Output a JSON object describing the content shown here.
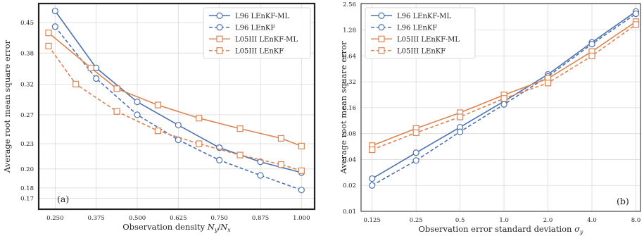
{
  "colors": {
    "l96": "#4c72b0",
    "l05": "#dd8452",
    "grid": "#d9d9d9",
    "frame": "#222222"
  },
  "chart_data": [
    {
      "type": "line",
      "panel_label": "(a)",
      "xlabel": "Observation density N_y/N_x",
      "xlabel_main": "Observation density ",
      "xlabel_math": "N",
      "xlabel_sub1": "y",
      "xlabel_slash": "/",
      "xlabel_math2": "N",
      "xlabel_sub2": "x",
      "ylabel": "Average root mean square error",
      "xlim": [
        0.2,
        1.04
      ],
      "ylim": [
        0.16,
        0.5
      ],
      "yscale": "log",
      "grid": true,
      "legend_position": "top-right",
      "x_ticks": [
        0.25,
        0.375,
        0.5,
        0.625,
        0.75,
        0.875,
        1.0
      ],
      "x_tick_labels": [
        "0.250",
        "0.375",
        "0.500",
        "0.625",
        "0.750",
        "0.875",
        "1.000"
      ],
      "y_ticks": [
        0.17,
        0.18,
        0.2,
        0.23,
        0.27,
        0.32,
        0.38,
        0.45
      ],
      "y_tick_labels": [
        "0.17",
        "0.18",
        "0.20",
        "0.23",
        "0.27",
        "0.32",
        "0.38",
        "0.45"
      ],
      "series": [
        {
          "name": "L96 LEnKF-ML",
          "color_key": "l96",
          "dashed": false,
          "marker": "circle",
          "x": [
            0.25,
            0.375,
            0.5,
            0.625,
            0.75,
            0.875,
            1.0
          ],
          "y": [
            0.48,
            0.35,
            0.29,
            0.255,
            0.225,
            0.208,
            0.196
          ]
        },
        {
          "name": "L96 LEnKF",
          "color_key": "l96",
          "dashed": true,
          "marker": "circle",
          "x": [
            0.25,
            0.375,
            0.5,
            0.625,
            0.75,
            0.875,
            1.0
          ],
          "y": [
            0.44,
            0.33,
            0.27,
            0.235,
            0.21,
            0.193,
            0.178
          ]
        },
        {
          "name": "L05III LEnKF-ML",
          "color_key": "l05",
          "dashed": false,
          "marker": "square",
          "x": [
            0.23,
            0.359,
            0.438,
            0.563,
            0.688,
            0.813,
            0.938,
            1.0
          ],
          "y": [
            0.425,
            0.35,
            0.312,
            0.285,
            0.265,
            0.25,
            0.237,
            0.227
          ]
        },
        {
          "name": "L05III LEnKF",
          "color_key": "l05",
          "dashed": true,
          "marker": "square",
          "x": [
            0.23,
            0.313,
            0.438,
            0.563,
            0.688,
            0.813,
            0.938,
            1.0
          ],
          "y": [
            0.395,
            0.32,
            0.275,
            0.247,
            0.23,
            0.216,
            0.205,
            0.198
          ]
        }
      ]
    },
    {
      "type": "line",
      "panel_label": "(b)",
      "xlabel": "Observation error standard deviation σ_y",
      "xlabel_main": "Observation error standard deviation ",
      "xlabel_math": "σ",
      "xlabel_sub1": "y",
      "ylabel": "Average root mean square error",
      "xscale": "log2",
      "yscale": "log",
      "xlim": [
        0.105,
        8.6
      ],
      "ylim": [
        0.01,
        2.6
      ],
      "grid": true,
      "legend_position": "top-left",
      "x_ticks": [
        0.125,
        0.25,
        0.5,
        1.0,
        2.0,
        4.0,
        8.0
      ],
      "x_tick_labels": [
        "0.125",
        "0.25",
        "0.5",
        "1.0",
        "2.0",
        "4.0",
        "8.0"
      ],
      "y_ticks": [
        0.01,
        0.02,
        0.04,
        0.08,
        0.16,
        0.32,
        0.64,
        1.28,
        2.56
      ],
      "y_tick_labels": [
        "0.01",
        "0.02",
        "0.04",
        "0.08",
        "0.16",
        "0.32",
        "0.64",
        "1.28",
        "2.56"
      ],
      "series": [
        {
          "name": "L96 LEnKF-ML",
          "color_key": "l96",
          "dashed": false,
          "marker": "circle",
          "x": [
            0.125,
            0.25,
            0.5,
            1.0,
            2.0,
            4.0,
            8.0
          ],
          "y": [
            0.024,
            0.048,
            0.095,
            0.19,
            0.39,
            0.92,
            2.1
          ]
        },
        {
          "name": "L96 LEnKF",
          "color_key": "l96",
          "dashed": true,
          "marker": "circle",
          "x": [
            0.125,
            0.25,
            0.5,
            1.0,
            2.0,
            4.0,
            8.0
          ],
          "y": [
            0.02,
            0.039,
            0.084,
            0.175,
            0.37,
            0.88,
            1.98
          ]
        },
        {
          "name": "L05III LEnKF-ML",
          "color_key": "l05",
          "dashed": false,
          "marker": "square",
          "x": [
            0.125,
            0.25,
            0.5,
            1.0,
            2.0,
            4.0,
            8.0
          ],
          "y": [
            0.058,
            0.092,
            0.14,
            0.225,
            0.35,
            0.72,
            1.6
          ]
        },
        {
          "name": "L05III LEnKF",
          "color_key": "l05",
          "dashed": true,
          "marker": "square",
          "x": [
            0.125,
            0.25,
            0.5,
            1.0,
            2.0,
            4.0,
            8.0
          ],
          "y": [
            0.052,
            0.082,
            0.125,
            0.205,
            0.31,
            0.64,
            1.48
          ]
        }
      ]
    }
  ]
}
